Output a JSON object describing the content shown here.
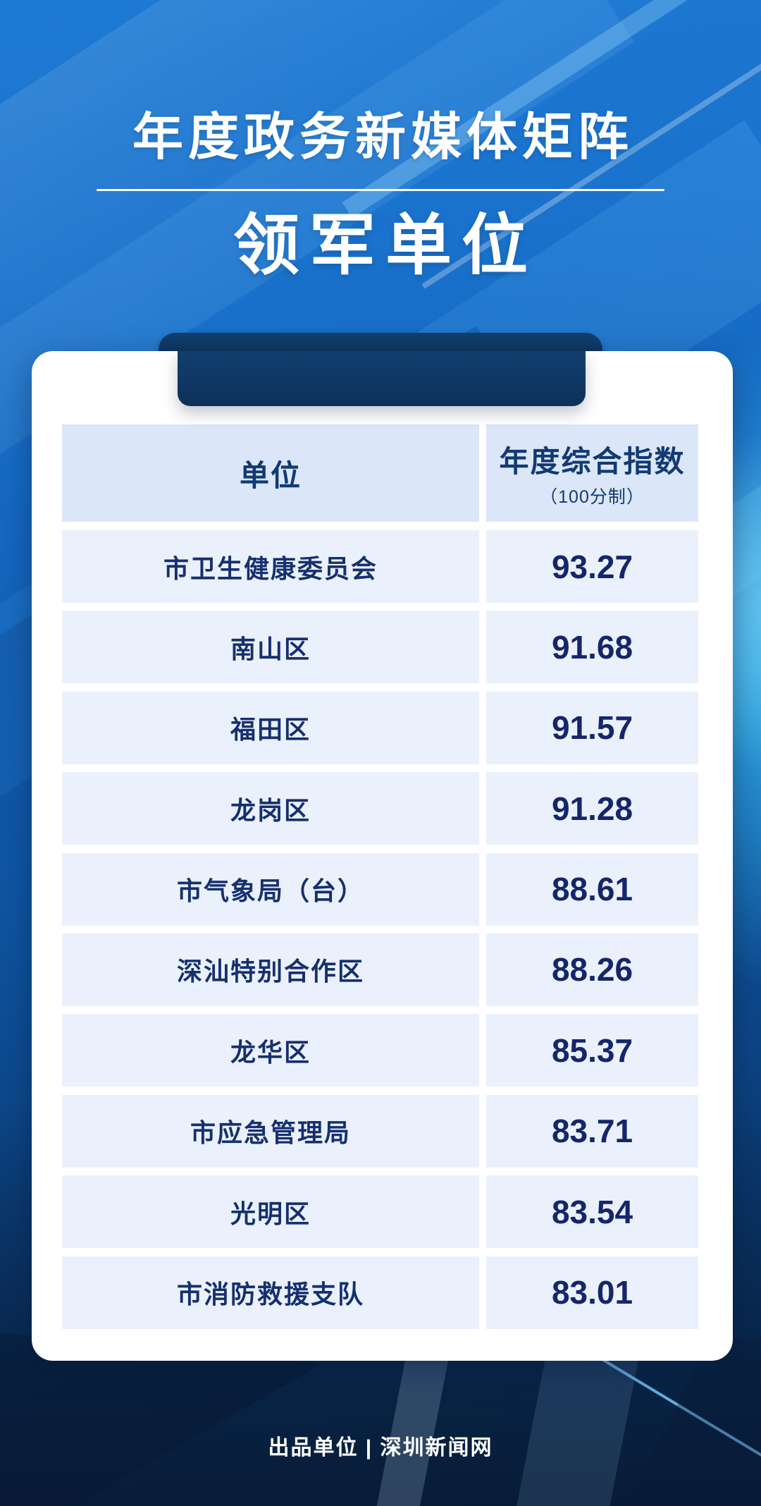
{
  "hero": {
    "title_line1": "年度政务新媒体矩阵",
    "title_line2": "领军单位"
  },
  "table": {
    "columns": [
      {
        "label": "单位"
      },
      {
        "label": "年度综合指数",
        "sublabel": "（100分制）"
      }
    ],
    "rows": [
      {
        "unit": "市卫生健康委员会",
        "score": "93.27"
      },
      {
        "unit": "南山区",
        "score": "91.68"
      },
      {
        "unit": "福田区",
        "score": "91.57"
      },
      {
        "unit": "龙岗区",
        "score": "91.28"
      },
      {
        "unit": "市气象局（台）",
        "score": "88.61"
      },
      {
        "unit": "深汕特别合作区",
        "score": "88.26"
      },
      {
        "unit": "龙华区",
        "score": "85.37"
      },
      {
        "unit": "市应急管理局",
        "score": "83.71"
      },
      {
        "unit": "光明区",
        "score": "83.54"
      },
      {
        "unit": "市消防救援支队",
        "score": "83.01"
      }
    ]
  },
  "footer": {
    "credit": "出品单位 | 深圳新闻网"
  },
  "colors": {
    "background_top": "#1d7ad4",
    "background_bottom": "#092547",
    "cyan_glow": "#3abcf2",
    "ribbon_navy": "#0d3158",
    "card_white": "#ffffff",
    "header_cell": "#dbe6f8",
    "row_cell": "#eaf1fc",
    "text_navy": "#16306e",
    "title_white": "#ffffff"
  },
  "chart_data": {
    "type": "table",
    "title": "年度政务新媒体矩阵 领军单位",
    "columns": [
      "单位",
      "年度综合指数（100分制）"
    ],
    "categories": [
      "市卫生健康委员会",
      "南山区",
      "福田区",
      "龙岗区",
      "市气象局（台）",
      "深汕特别合作区",
      "龙华区",
      "市应急管理局",
      "光明区",
      "市消防救援支队"
    ],
    "values": [
      93.27,
      91.68,
      91.57,
      91.28,
      88.61,
      88.26,
      85.37,
      83.71,
      83.54,
      83.01
    ]
  }
}
